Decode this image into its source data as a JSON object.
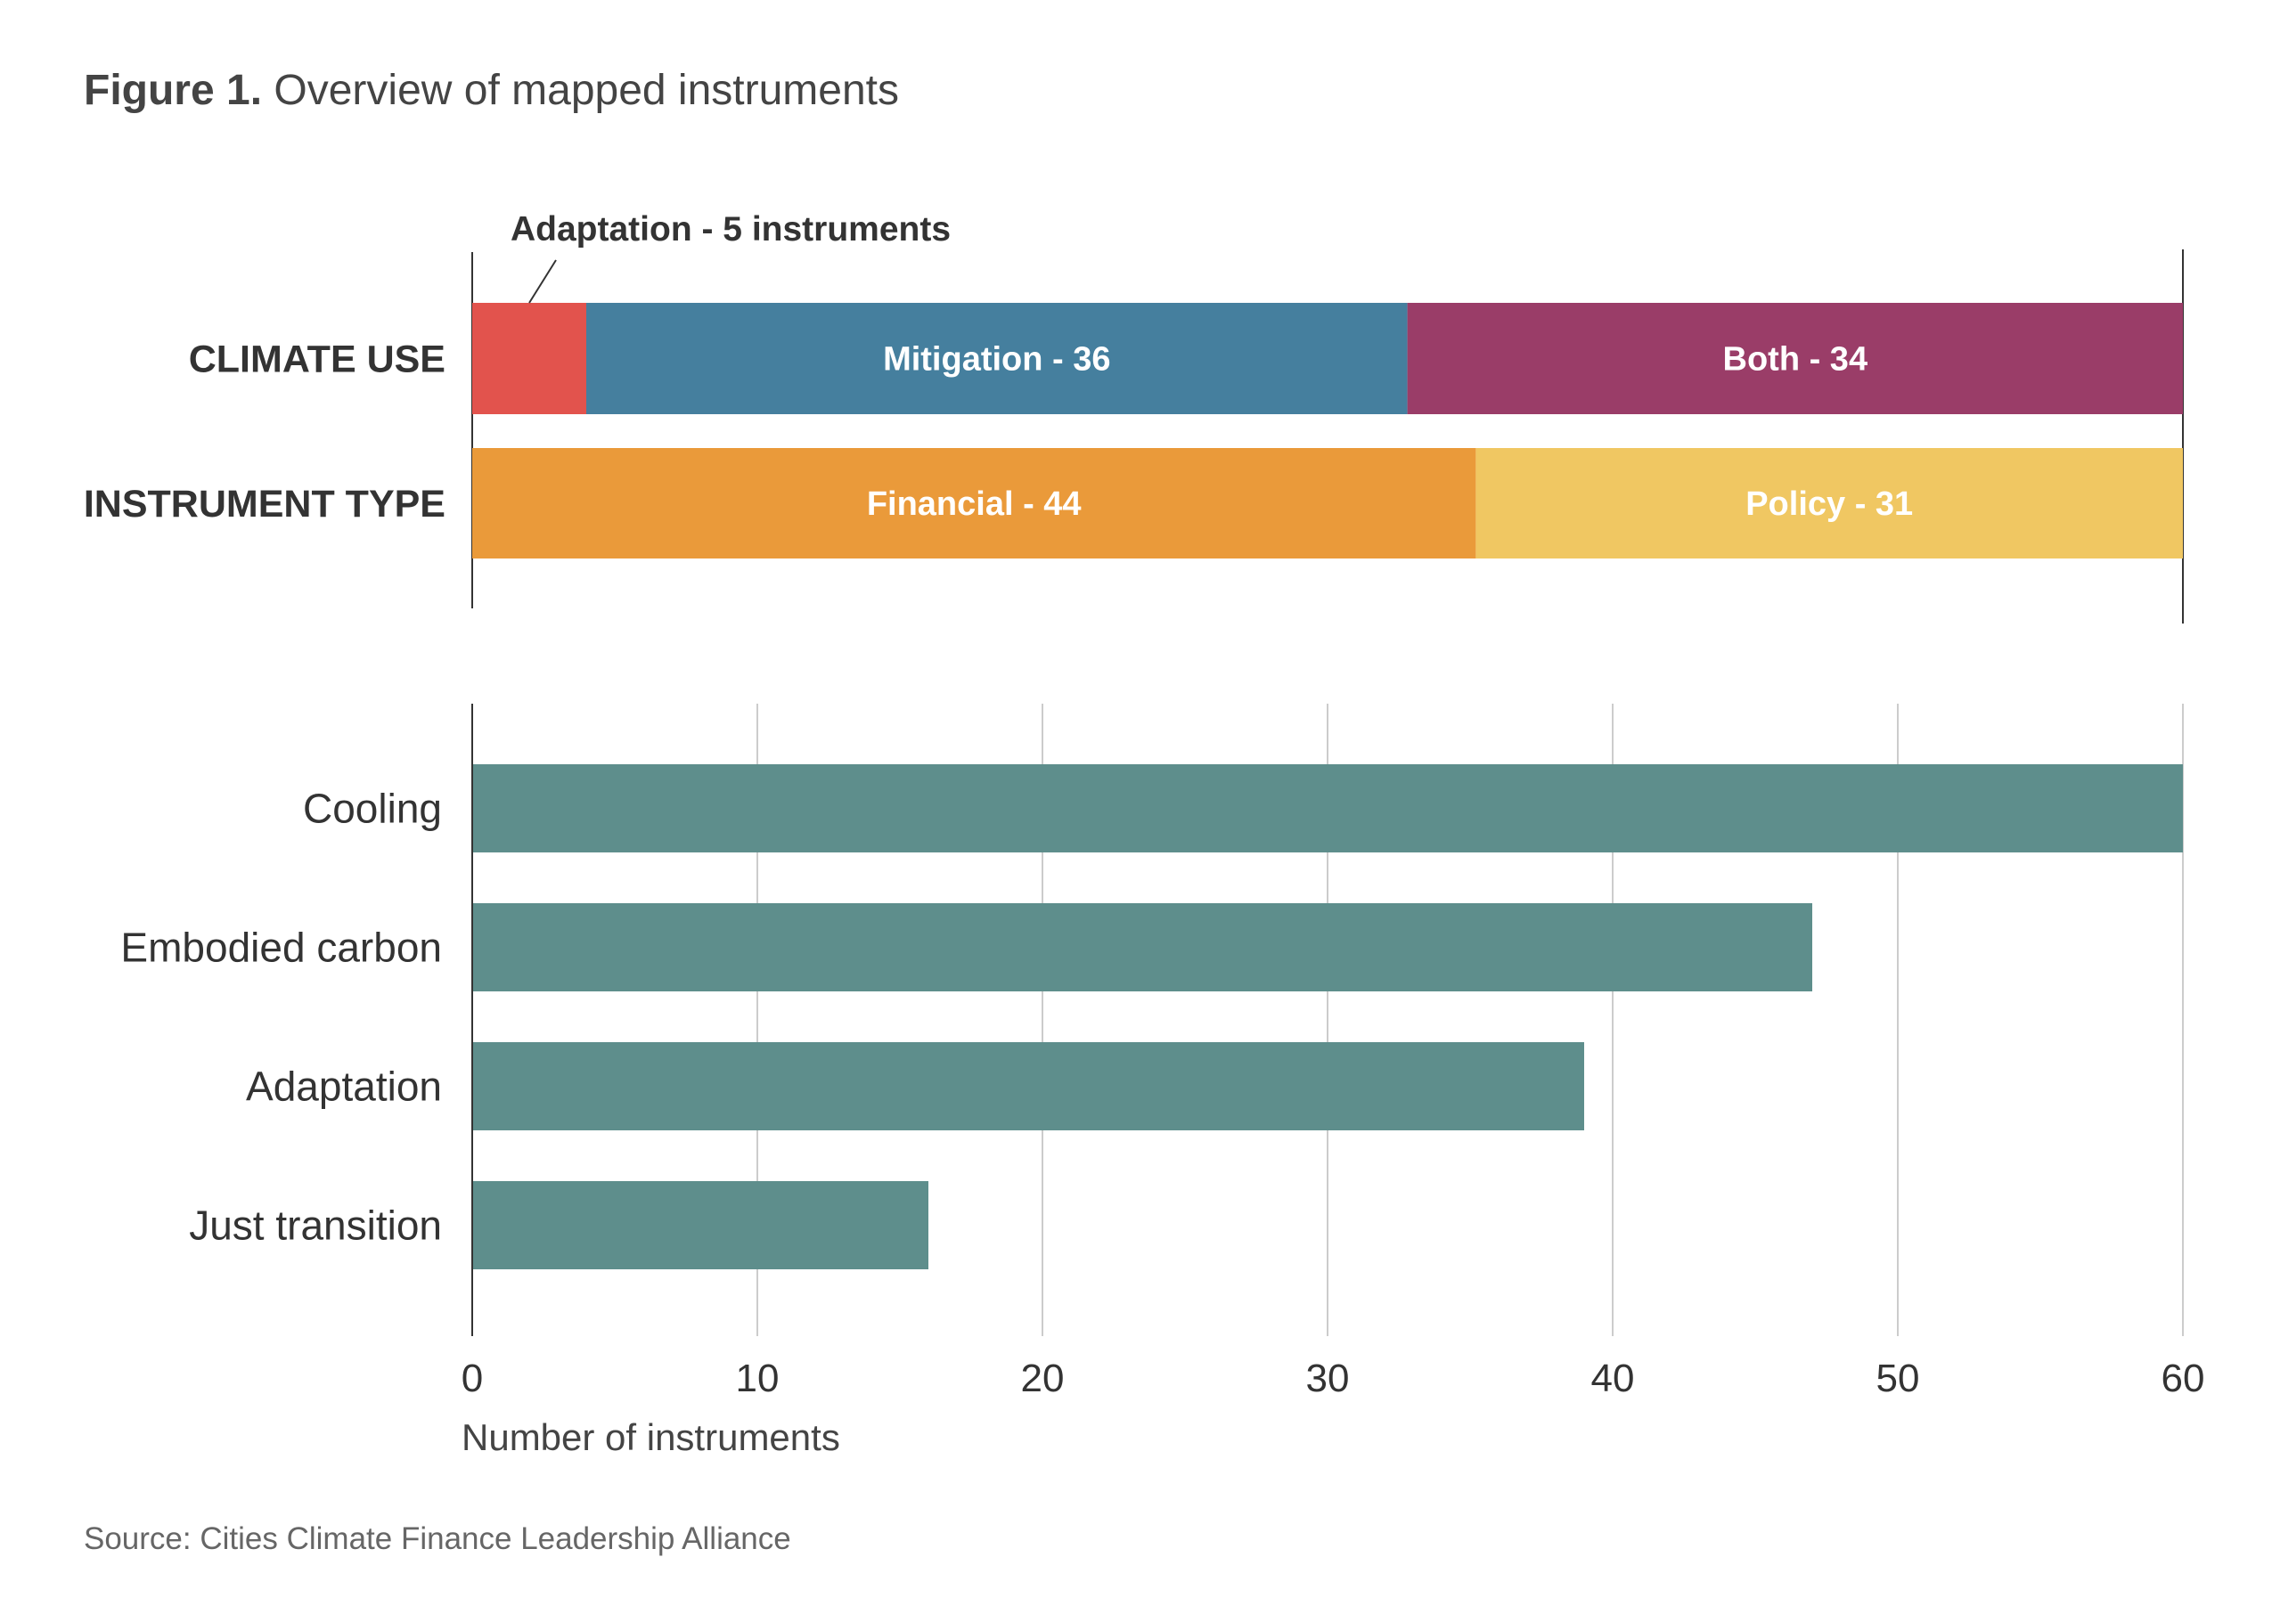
{
  "figure": {
    "label": "Figure 1.",
    "title": "Overview of mapped instruments",
    "source": "Source: Cities Climate Finance Leadership Alliance"
  },
  "chart_data": [
    {
      "type": "bar",
      "stacked": true,
      "orientation": "horizontal",
      "title": "",
      "categories": [
        "CLIMATE USE",
        "INSTRUMENT TYPE"
      ],
      "rows": [
        {
          "category": "CLIMATE USE",
          "segments": [
            {
              "name": "Adaptation",
              "value": 5,
              "color": "#e2534d",
              "label": "Adaptation - 5 instruments",
              "label_position": "callout-above"
            },
            {
              "name": "Mitigation",
              "value": 36,
              "color": "#457f9e",
              "label": "Mitigation - 36"
            },
            {
              "name": "Both",
              "value": 34,
              "color": "#9a3d68",
              "label": "Both - 34"
            }
          ]
        },
        {
          "category": "INSTRUMENT TYPE",
          "segments": [
            {
              "name": "Financial",
              "value": 44,
              "color": "#ea9a3a",
              "label": "Financial - 44"
            },
            {
              "name": "Policy",
              "value": 31,
              "color": "#f0c762",
              "label": "Policy - 31"
            }
          ]
        }
      ],
      "total": 75
    },
    {
      "type": "bar",
      "orientation": "horizontal",
      "title": "",
      "categories": [
        "Cooling",
        "Embodied carbon",
        "Adaptation",
        "Just transition"
      ],
      "values": [
        60,
        47,
        39,
        16
      ],
      "color": "#5e8e8c",
      "xlabel": "Number of instruments",
      "ylabel": "",
      "xlim": [
        0,
        60
      ],
      "xticks": [
        0,
        10,
        20,
        30,
        40,
        50,
        60
      ],
      "grid": true
    }
  ]
}
